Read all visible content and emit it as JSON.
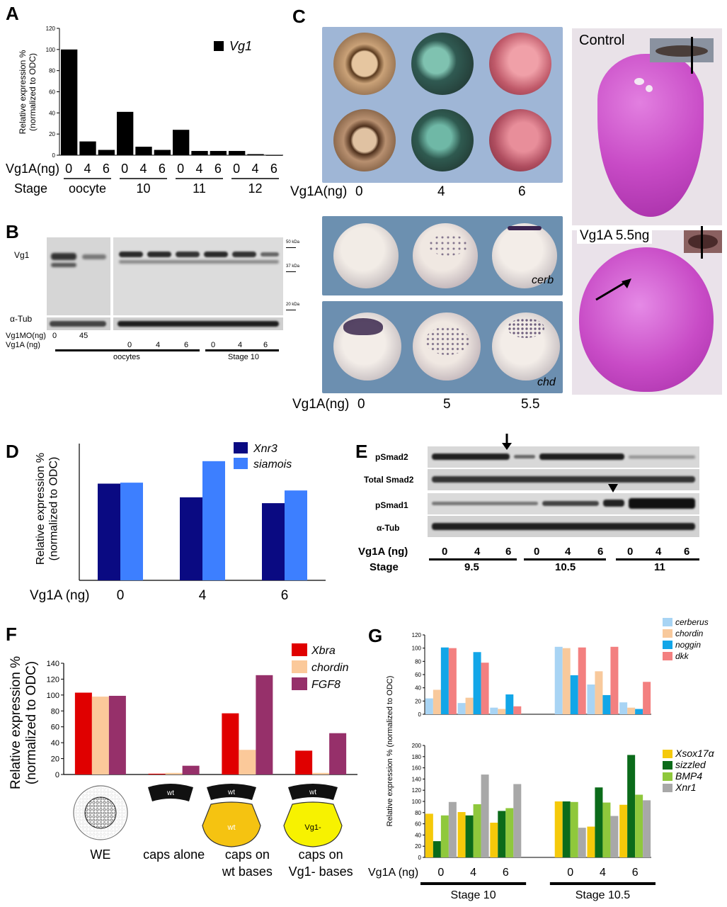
{
  "panels": {
    "A": "A",
    "B": "B",
    "C": "C",
    "D": "D",
    "E": "E",
    "F": "F",
    "G": "G"
  },
  "colors": {
    "black": "#000000",
    "navy": "#0a0a82",
    "sky": "#3d7fff",
    "red": "#e00000",
    "peach": "#fbc99a",
    "plum": "#96306a",
    "light_blue": "#a8d4f4",
    "light_orange": "#f8c99c",
    "cyan": "#12a6e8",
    "pink": "#f38080",
    "yellow": "#f5c90a",
    "dark_green": "#0b6b1a",
    "lime": "#8fc83c",
    "gray": "#a8a8a8",
    "he_stain": "#c84bc6"
  },
  "chart_data": [
    {
      "id": "A",
      "type": "bar",
      "ylabel": "Relative expression % (normalized to ODC)",
      "ylim": [
        0,
        120
      ],
      "yticks": [
        "0",
        "20",
        "40",
        "60",
        "80",
        "100",
        "120"
      ],
      "categories": [
        "0",
        "4",
        "6",
        "0",
        "4",
        "6",
        "0",
        "4",
        "6",
        "0",
        "4",
        "6"
      ],
      "row_label_dose": "Vg1A(ng)",
      "row_label_stage": "Stage",
      "stage_groups": [
        "oocyte",
        "10",
        "11",
        "12"
      ],
      "series": [
        {
          "name": "Vg1",
          "color": "#000000",
          "values": [
            100,
            13,
            5,
            41,
            8,
            5,
            24,
            4,
            4,
            4,
            1,
            0
          ]
        }
      ]
    },
    {
      "id": "D",
      "type": "bar",
      "ylabel": "Relative expression % (normalized to ODC)",
      "ylim": [
        0,
        140
      ],
      "categories": [
        "0",
        "4",
        "6"
      ],
      "row_label_dose": "Vg1A (ng)",
      "series": [
        {
          "name": "Xnr3",
          "color": "#0a0a82",
          "values": [
            99,
            85,
            79
          ]
        },
        {
          "name": "siamois",
          "color": "#3d7fff",
          "values": [
            100,
            122,
            92
          ]
        }
      ]
    },
    {
      "id": "F",
      "type": "bar",
      "ylabel": "Relative expression % (normalized to ODC)",
      "ylim": [
        0,
        140
      ],
      "yticks": [
        "0",
        "20",
        "40",
        "60",
        "80",
        "100",
        "120",
        "140"
      ],
      "categories": [
        "WE",
        "caps alone",
        "caps on wt bases",
        "caps on Vg1- bases"
      ],
      "series": [
        {
          "name": "Xbra",
          "color": "#e00000",
          "values": [
            103,
            1,
            77,
            30
          ]
        },
        {
          "name": "chordin",
          "color": "#fbc99a",
          "values": [
            98,
            2,
            31,
            2
          ]
        },
        {
          "name": "FGF8",
          "color": "#96306a",
          "values": [
            99,
            11,
            125,
            52
          ]
        }
      ]
    },
    {
      "id": "G-top",
      "type": "bar",
      "ylabel": "Relative expression % (normalized to ODC)",
      "ylim": [
        0,
        120
      ],
      "yticks": [
        "0",
        "20",
        "40",
        "60",
        "80",
        "100",
        "120"
      ],
      "categories": [
        "0",
        "4",
        "6",
        "0",
        "4",
        "6"
      ],
      "series": [
        {
          "name": "cerberus",
          "color": "#a8d4f4",
          "values": [
            24,
            17,
            10,
            102,
            45,
            18
          ]
        },
        {
          "name": "chordin",
          "color": "#f8c99c",
          "values": [
            37,
            25,
            8,
            100,
            65,
            10
          ]
        },
        {
          "name": "noggin",
          "color": "#12a6e8",
          "values": [
            101,
            94,
            30,
            59,
            29,
            8
          ]
        },
        {
          "name": "dkk",
          "color": "#f38080",
          "values": [
            100,
            78,
            12,
            101,
            102,
            49
          ]
        }
      ]
    },
    {
      "id": "G-bottom",
      "type": "bar",
      "ylabel": "Relative expression % (normalized to ODC)",
      "ylim": [
        0,
        200
      ],
      "yticks": [
        "0",
        "20",
        "40",
        "60",
        "80",
        "100",
        "120",
        "140",
        "160",
        "180",
        "200"
      ],
      "categories": [
        "0",
        "4",
        "6",
        "0",
        "4",
        "6"
      ],
      "row_label_dose": "Vg1A (ng)",
      "stage_groups": [
        "Stage 10",
        "Stage 10.5"
      ],
      "series": [
        {
          "name": "Xsox17α",
          "color": "#f5c90a",
          "values": [
            78,
            81,
            62,
            100,
            55,
            94
          ]
        },
        {
          "name": "sizzled",
          "color": "#0b6b1a",
          "values": [
            29,
            75,
            83,
            100,
            125,
            183
          ]
        },
        {
          "name": "BMP4",
          "color": "#8fc83c",
          "values": [
            75,
            95,
            88,
            99,
            98,
            112
          ]
        },
        {
          "name": "Xnr1",
          "color": "#a8a8a8",
          "values": [
            99,
            148,
            131,
            53,
            74,
            102
          ]
        }
      ]
    }
  ],
  "blotB": {
    "vg1_label": "Vg1",
    "tub_label": "α-Tub",
    "mo_label": "Vg1MO(ng)",
    "mo_values": [
      "0",
      "45"
    ],
    "dose_label": "Vg1A (ng)",
    "dose_values": [
      "0",
      "4",
      "6",
      "0",
      "4",
      "6"
    ],
    "group_labels": [
      "oocytes",
      "Stage 10"
    ],
    "markers": [
      "50 kDa",
      "37 kDa",
      "20 kDa"
    ]
  },
  "panelC": {
    "row1_label": "Vg1A(ng)",
    "row1_doses": [
      "0",
      "4",
      "6"
    ],
    "gene1": "cerb",
    "gene2": "chd",
    "row2_label": "Vg1A(ng)",
    "row2_doses": [
      "0",
      "5",
      "5.5"
    ],
    "section1": "Control",
    "section2": "Vg1A 5.5ng"
  },
  "blotE": {
    "rows": [
      "pSmad2",
      "Total Smad2",
      "pSmad1",
      "α-Tub"
    ],
    "dose_label": "Vg1A (ng)",
    "stage_label": "Stage",
    "dose_values": [
      "0",
      "4",
      "6",
      "0",
      "4",
      "6",
      "0",
      "4",
      "6"
    ],
    "stage_values": [
      "9.5",
      "10.5",
      "11"
    ]
  },
  "panelF_icons": {
    "wt": "wt",
    "vg1": "Vg1-"
  }
}
